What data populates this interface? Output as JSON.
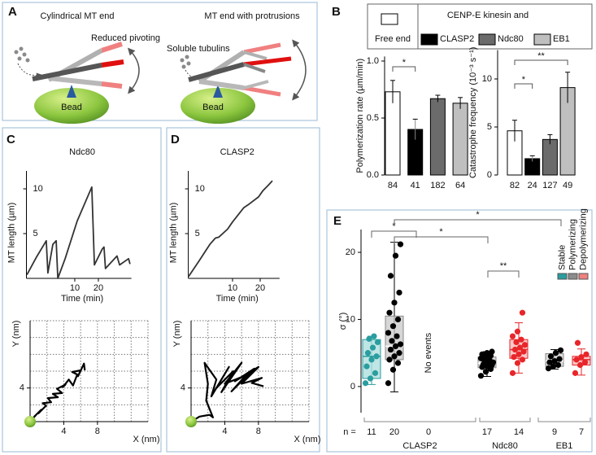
{
  "panel_labels": [
    "A",
    "B",
    "C",
    "D",
    "E"
  ],
  "diagram": {
    "left_title": "Cylindrical MT end",
    "left_note": "Reduced pivoting",
    "left_bead": "Bead",
    "right_title": "MT end with protrusions",
    "right_note": "Soluble tubulins",
    "right_bead": "Bead"
  },
  "legend_b": {
    "free_end": "Free end",
    "heading": "CENP-E kinesin and",
    "items": [
      "CLASP2",
      "Ndc80",
      "EB1"
    ]
  },
  "chart_data": [
    {
      "type": "bar",
      "y_label": "Polymerization rate (µm/min)",
      "categories": [
        "84",
        "41",
        "182",
        "64"
      ],
      "values": [
        0.73,
        0.4,
        0.67,
        0.63
      ],
      "errors": [
        0.1,
        0.09,
        0.03,
        0.05
      ],
      "colors": [
        "#ffffff",
        "#000000",
        "#6b6b6b",
        "#bfbfbf"
      ],
      "ylim": [
        0,
        1.04
      ],
      "yticks": [
        {
          "value": 0,
          "label": "0.0"
        },
        {
          "value": 0.5,
          "label": "0.5"
        },
        {
          "value": 1,
          "label": "1.0"
        }
      ],
      "annotations": [
        "*"
      ]
    },
    {
      "type": "bar",
      "y_label": "Catastrophe frequency (10⁻³ s⁻¹)",
      "categories": [
        "82",
        "24",
        "127",
        "49"
      ],
      "values": [
        4.6,
        1.7,
        3.7,
        9.1
      ],
      "errors": [
        1.1,
        0.3,
        0.5,
        1.6
      ],
      "colors": [
        "#ffffff",
        "#000000",
        "#6b6b6b",
        "#bfbfbf"
      ],
      "ylim": [
        0,
        13
      ],
      "yticks": [
        0,
        5,
        10
      ],
      "annotations": [
        "*",
        "**"
      ]
    },
    {
      "type": "line",
      "title": "Ndc80",
      "x_label": "Time (min)",
      "y_label": "MT length (µm)",
      "x": [
        -10.3,
        -6.2,
        -2.1,
        -1.4,
        0.7,
        2.1,
        2.8,
        5.9,
        11,
        17.2,
        18.3,
        21.7,
        22.4,
        23,
        27.9,
        29,
        32.8,
        33.4
      ],
      "y": [
        0.4,
        2.4,
        4.2,
        0.6,
        3.8,
        4.2,
        0,
        2.2,
        6.4,
        10.2,
        1.5,
        3.3,
        3.5,
        1.1,
        2.5,
        1.5,
        2.2,
        1.6
      ],
      "xlim": [
        -10.5,
        34
      ],
      "ylim": [
        0,
        12
      ],
      "xticks": [
        10,
        20
      ],
      "yticks": [
        5,
        10
      ],
      "color": "#333333"
    },
    {
      "type": "line",
      "x_label": "X (nm)",
      "y_label": "Y (nm)",
      "x": [
        0,
        0.8,
        0.5,
        1.3,
        1,
        1.9,
        1.5,
        2.5,
        2.1,
        3.3,
        2.7,
        3.8,
        3.2,
        4.2,
        3.9,
        4.6,
        5.1,
        5.6,
        5,
        6,
        5.7,
        6.4,
        6.5
      ],
      "y": [
        0,
        0.9,
        0.6,
        1.4,
        1,
        1.9,
        2.2,
        2.3,
        2.8,
        2.9,
        3.3,
        3.4,
        3.9,
        4.4,
        4.1,
        5,
        4.3,
        5.6,
        5.9,
        6.1,
        5.4,
        6.9,
        6.1
      ],
      "xlim": [
        0,
        14
      ],
      "ylim": [
        0,
        12
      ],
      "xticks": [
        4,
        8
      ],
      "yticks": [
        4
      ],
      "grid": true,
      "xminor": [
        2,
        6,
        10,
        12,
        14
      ],
      "yminor": [
        2,
        6,
        8,
        10,
        12
      ],
      "color": "#000000"
    },
    {
      "type": "line",
      "title": "CLASP2",
      "x_label": "Time (min)",
      "y_label": "MT length (µm)",
      "x": [
        -5.9,
        -2,
        1.8,
        3.8,
        5,
        8.2,
        10,
        14.1,
        16,
        19.4,
        21,
        22.9,
        24.4
      ],
      "y": [
        0.2,
        2,
        3.8,
        4.5,
        4.6,
        5.5,
        6.3,
        7.9,
        8.3,
        9.1,
        9.8,
        10.4,
        10.9
      ],
      "xlim": [
        -6,
        27
      ],
      "ylim": [
        0,
        12
      ],
      "xticks": [
        10,
        20
      ],
      "yticks": [
        5,
        10
      ],
      "color": "#333333"
    },
    {
      "type": "line",
      "x_label": "X (nm)",
      "y_label": "Y (nm)",
      "x": [
        0,
        1,
        2.2,
        2.6,
        1.8,
        2,
        1.6,
        3,
        2.4,
        4.5,
        3,
        5,
        3.6,
        6,
        4,
        6.5,
        4.8,
        7.5,
        5.2,
        8,
        6,
        8.4,
        7.2,
        8.6
      ],
      "y": [
        0,
        0.6,
        0.8,
        0.5,
        2.5,
        4.5,
        7,
        5,
        3,
        6.5,
        4,
        6,
        3.5,
        7,
        4.5,
        5.5,
        3.6,
        6.3,
        4.8,
        6.5,
        4.5,
        5.2,
        4.6,
        4.2
      ],
      "xlim": [
        0,
        14
      ],
      "ylim": [
        0,
        12
      ],
      "xticks": [
        4,
        8
      ],
      "yticks": [
        4
      ],
      "grid": true,
      "xminor": [
        2,
        6,
        10,
        12,
        14
      ],
      "yminor": [
        2,
        6,
        8,
        10,
        12
      ],
      "color": "#000000"
    },
    {
      "type": "box",
      "y_label": "σ (°)",
      "categories": [
        "CLASP2",
        "Ndc80",
        "EB1"
      ],
      "n_prefix": "n =",
      "ylim": [
        -3.9,
        23.4
      ],
      "yticks": [
        0,
        10,
        20
      ],
      "annotations": [
        "*",
        "*",
        "*",
        "**"
      ],
      "series": [
        {
          "name": "Stable",
          "color": "#2a9d9f",
          "label_color": "#2a9d9f",
          "boxes": [
            {
              "n": 11,
              "color": "#2a9d9f",
              "fill": "#a9dcdc",
              "whislo": 0.3,
              "q1": 1.2,
              "med": 4.5,
              "q3": 7.0,
              "whishi": 7.5,
              "points": [
                0.5,
                1.2,
                2.0,
                3.0,
                4.0,
                4.5,
                5.0,
                5.8,
                6.6,
                7.1,
                7.5
              ]
            },
            {
              "n": 17,
              "color": "#000000",
              "fill": "#d0d0d0",
              "whislo": 1.5,
              "q1": 2.8,
              "med": 3.5,
              "q3": 4.4,
              "whishi": 5.2,
              "points": [
                1.6,
                2.2,
                2.6,
                2.9,
                3.0,
                3.2,
                3.3,
                3.5,
                3.6,
                3.8,
                4.0,
                4.2,
                4.4,
                4.6,
                4.8,
                5.0,
                5.2
              ]
            },
            {
              "n": 9,
              "color": "#000000",
              "fill": "#d0d0d0",
              "whislo": 2.6,
              "q1": 3.0,
              "med": 3.8,
              "q3": 4.9,
              "whishi": 5.5,
              "points": [
                2.7,
                3.0,
                3.2,
                3.6,
                3.8,
                4.1,
                4.5,
                5.0,
                5.4
              ]
            }
          ]
        },
        {
          "name": "Polymerizing",
          "color": "#8c8c8c",
          "label_color": "#111111",
          "boxes": [
            {
              "n": 20,
              "color": "#000000",
              "fill": "#c8c8c8",
              "whislo": -0.8,
              "q1": 4.0,
              "med": 6.0,
              "q3": 10.5,
              "whishi": 21.5,
              "points": [
                0.5,
                2.5,
                3.5,
                4.0,
                4.5,
                5.0,
                5.5,
                6.0,
                6.3,
                6.8,
                7.5,
                8.0,
                9.0,
                10.0,
                11.0,
                12.5,
                14.0,
                16.5,
                19.5,
                21.2
              ]
            },
            null,
            null
          ]
        },
        {
          "name": "Depolymerizing",
          "color": "#f08080",
          "label_color": "#111111",
          "boxes": [
            {
              "n": 0,
              "note": "No events"
            },
            {
              "n": 14,
              "color": "#e8262a",
              "fill": "#f7b5b5",
              "whislo": 2.0,
              "q1": 4.2,
              "med": 5.5,
              "q3": 7.0,
              "whishi": 9.5,
              "points": [
                2.0,
                3.5,
                4.0,
                4.4,
                4.8,
                5.2,
                5.5,
                5.8,
                6.2,
                6.6,
                7.0,
                7.5,
                8.2,
                11.0
              ]
            },
            {
              "n": 7,
              "color": "#e8262a",
              "fill": "#f7b5b5",
              "whislo": 1.7,
              "q1": 3.2,
              "med": 4.0,
              "q3": 4.5,
              "whishi": 5.6,
              "points": [
                2.0,
                3.2,
                3.6,
                4.0,
                4.4,
                4.8,
                6.5
              ]
            }
          ]
        }
      ]
    }
  ]
}
